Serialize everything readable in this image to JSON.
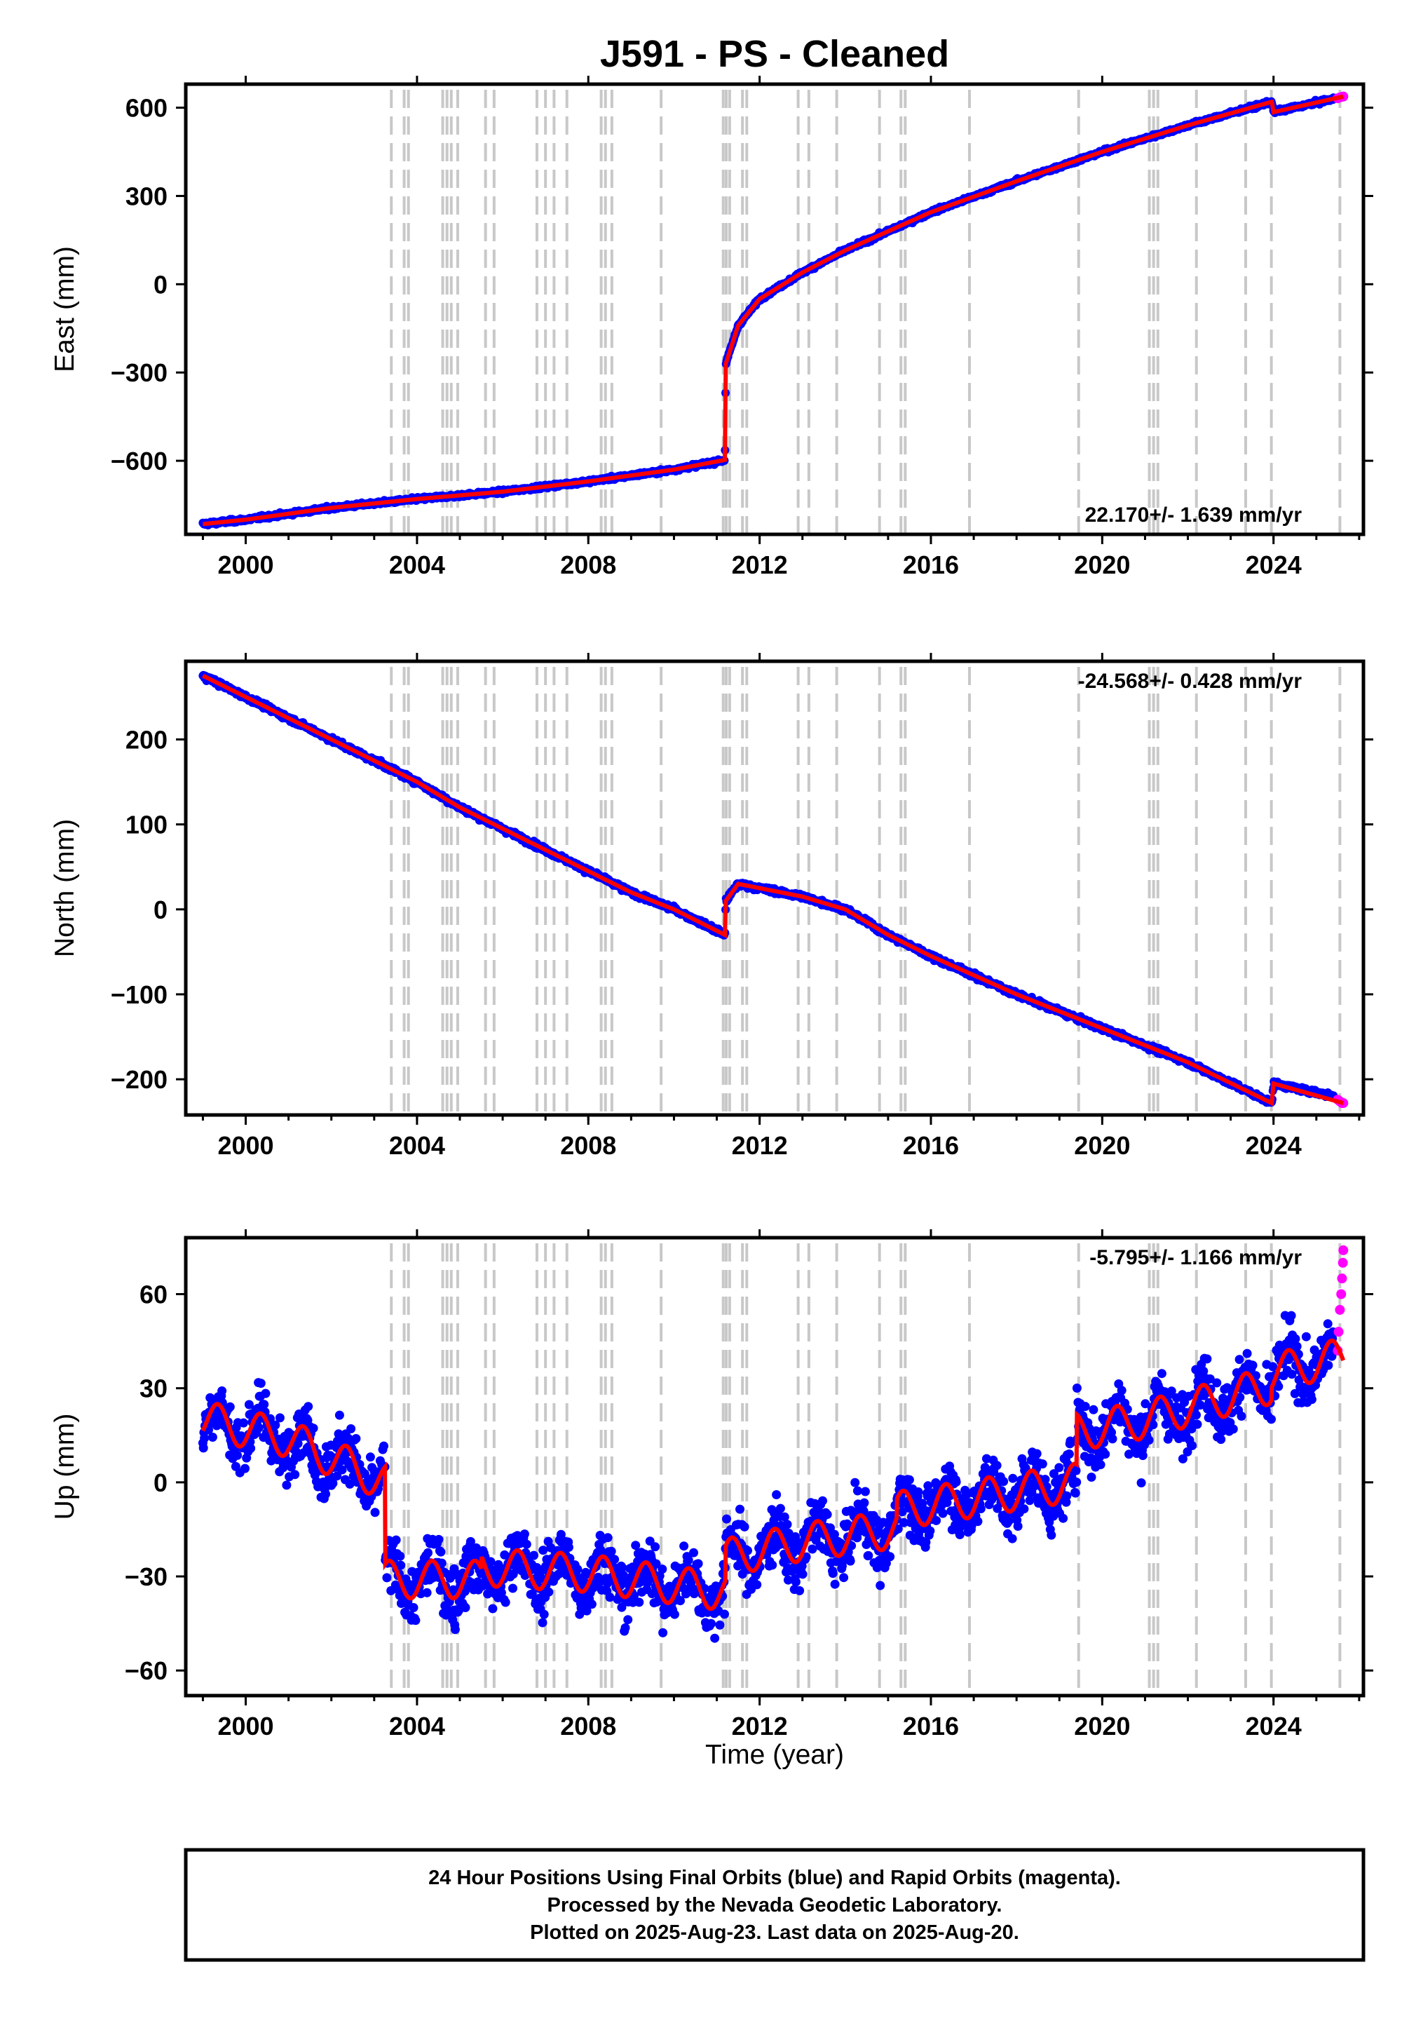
{
  "figure": {
    "title": "J591  - PS - Cleaned",
    "xlabel": "Time (year)",
    "footer": [
      "24 Hour Positions Using Final Orbits (blue) and Rapid Orbits (magenta).",
      "Processed by the Nevada Geodetic Laboratory.",
      "Plotted on 2025-Aug-23. Last data on 2025-Aug-20."
    ]
  },
  "colors": {
    "final_orbits": "#0000ff",
    "rapid_orbits": "#ff00ff",
    "model": "#ff0000",
    "event_lines": "#c8c8c8",
    "frame": "#000000"
  },
  "chart_data": [
    {
      "type": "scatter",
      "component": "east",
      "ylabel": "East (mm)",
      "rate": "22.170+/- 1.639 mm/yr",
      "rate_position": "bottom-right",
      "xlim": [
        1998.6,
        2026.1
      ],
      "ylim": [
        -850,
        680
      ],
      "x_ticks": [
        2000,
        2004,
        2008,
        2012,
        2016,
        2020,
        2024
      ],
      "y_ticks": [
        -600,
        -300,
        0,
        300,
        600
      ],
      "y_tick_labels": [
        "−600",
        "−300",
        "0",
        "300",
        "600"
      ],
      "series": [
        {
          "role": "final",
          "x": [
            1999.0,
            2000.0,
            2002.0,
            2004.0,
            2006.0,
            2008.0,
            2010.0,
            2011.19,
            2011.21,
            2011.5,
            2012.0,
            2013.0,
            2014.0,
            2015.0,
            2016.0,
            2018.0,
            2020.0,
            2022.0,
            2023.96,
            2024.0,
            2025.4
          ],
          "y": [
            -815,
            -800,
            -760,
            -730,
            -705,
            -670,
            -630,
            -597,
            -270,
            -140,
            -50,
            40,
            115,
            180,
            245,
            350,
            450,
            540,
            620,
            585,
            630
          ]
        },
        {
          "role": "rapid",
          "x": [
            2025.5,
            2025.55,
            2025.6,
            2025.63
          ],
          "y": [
            632,
            635,
            637,
            638
          ]
        }
      ],
      "model": {
        "x": [
          1999.0,
          2000.0,
          2002.0,
          2004.0,
          2006.0,
          2008.0,
          2010.0,
          2011.19,
          2011.21,
          2011.5,
          2012.0,
          2013.0,
          2014.0,
          2015.0,
          2016.0,
          2018.0,
          2020.0,
          2022.0,
          2023.96,
          2024.0,
          2025.63
        ],
        "y": [
          -815,
          -800,
          -760,
          -730,
          -705,
          -670,
          -630,
          -597,
          -270,
          -140,
          -50,
          40,
          115,
          180,
          245,
          350,
          450,
          540,
          620,
          585,
          638
        ]
      }
    },
    {
      "type": "scatter",
      "component": "north",
      "ylabel": "North (mm)",
      "rate": "-24.568+/- 0.428 mm/yr",
      "rate_position": "top-right",
      "xlim": [
        1998.6,
        2026.1
      ],
      "ylim": [
        -242,
        292
      ],
      "x_ticks": [
        2000,
        2004,
        2008,
        2012,
        2016,
        2020,
        2024
      ],
      "y_ticks": [
        -200,
        -100,
        0,
        100,
        200
      ],
      "y_tick_labels": [
        "−200",
        "−100",
        "0",
        "100",
        "200"
      ],
      "series": [
        {
          "role": "final",
          "x": [
            1999.0,
            2000.0,
            2001.0,
            2002.0,
            2003.0,
            2004.0,
            2005.0,
            2006.0,
            2007.0,
            2008.0,
            2009.0,
            2010.0,
            2011.19,
            2011.21,
            2011.5,
            2012.0,
            2013.0,
            2014.0,
            2015.0,
            2016.0,
            2018.0,
            2020.0,
            2022.0,
            2023.96,
            2024.0,
            2025.4
          ],
          "y": [
            275,
            250,
            225,
            200,
            175,
            150,
            120,
            95,
            70,
            45,
            20,
            0,
            -30,
            10,
            30,
            25,
            15,
            0,
            -30,
            -55,
            -100,
            -140,
            -180,
            -228,
            -205,
            -220
          ]
        },
        {
          "role": "rapid",
          "x": [
            2025.5,
            2025.55,
            2025.6,
            2025.63
          ],
          "y": [
            -224,
            -226,
            -228,
            -228
          ]
        }
      ],
      "model": {
        "x": [
          1999.0,
          2000.0,
          2001.0,
          2002.0,
          2003.0,
          2004.0,
          2005.0,
          2006.0,
          2007.0,
          2008.0,
          2009.0,
          2010.0,
          2011.19,
          2011.21,
          2011.5,
          2012.0,
          2013.0,
          2014.0,
          2015.0,
          2016.0,
          2018.0,
          2020.0,
          2022.0,
          2023.96,
          2024.0,
          2025.63
        ],
        "y": [
          275,
          250,
          225,
          200,
          175,
          150,
          120,
          95,
          70,
          45,
          20,
          0,
          -30,
          10,
          30,
          25,
          15,
          0,
          -30,
          -55,
          -100,
          -140,
          -180,
          -228,
          -205,
          -228
        ]
      }
    },
    {
      "type": "scatter",
      "component": "up",
      "ylabel": "Up (mm)",
      "rate": "-5.795+/- 1.166 mm/yr",
      "rate_position": "top-right",
      "xlim": [
        1998.6,
        2026.1
      ],
      "ylim": [
        -68,
        78
      ],
      "x_ticks": [
        2000,
        2004,
        2008,
        2012,
        2016,
        2020,
        2024
      ],
      "y_ticks": [
        -60,
        -30,
        0,
        30,
        60
      ],
      "y_tick_labels": [
        "−60",
        "−30",
        "0",
        "30",
        "60"
      ],
      "seasonal_amplitude_mm": 6,
      "scatter_spread_mm": 9,
      "series": [
        {
          "role": "final",
          "x": [
            1999.0,
            2001.0,
            2003.25,
            2003.26,
            2005.5,
            2005.51,
            2008.0,
            2011.2,
            2011.21,
            2013.0,
            2015.2,
            2015.21,
            2019.4,
            2019.41,
            2021.0,
            2023.95,
            2023.96,
            2025.4
          ],
          "y": [
            20,
            14,
            0,
            -31,
            -31,
            -27,
            -29,
            -35,
            -24,
            -19,
            -15,
            -9,
            0,
            16,
            20,
            31,
            35,
            39
          ]
        },
        {
          "role": "rapid",
          "x": [
            2025.5,
            2025.52,
            2025.55,
            2025.58,
            2025.6,
            2025.62,
            2025.63
          ],
          "y": [
            42,
            48,
            55,
            60,
            65,
            70,
            74
          ]
        }
      ],
      "model": {
        "x": [
          1999.0,
          2001.0,
          2003.25,
          2003.26,
          2005.5,
          2005.51,
          2008.0,
          2011.2,
          2011.21,
          2013.0,
          2015.2,
          2015.21,
          2019.4,
          2019.41,
          2021.0,
          2023.95,
          2023.96,
          2025.63
        ],
        "y": [
          20,
          14,
          0,
          -31,
          -31,
          -27,
          -29,
          -35,
          -24,
          -19,
          -15,
          -9,
          0,
          16,
          20,
          31,
          35,
          40
        ]
      }
    }
  ],
  "event_lines_x": [
    2003.4,
    2003.7,
    2003.8,
    2004.6,
    2004.7,
    2004.8,
    2004.95,
    2005.6,
    2005.8,
    2006.8,
    2007.0,
    2007.2,
    2007.5,
    2008.3,
    2008.4,
    2008.55,
    2009.7,
    2011.15,
    2011.22,
    2011.3,
    2011.6,
    2011.7,
    2012.9,
    2013.15,
    2013.8,
    2014.8,
    2015.3,
    2015.4,
    2016.9,
    2019.45,
    2021.1,
    2021.2,
    2021.3,
    2022.2,
    2023.35,
    2023.95,
    2025.55
  ]
}
